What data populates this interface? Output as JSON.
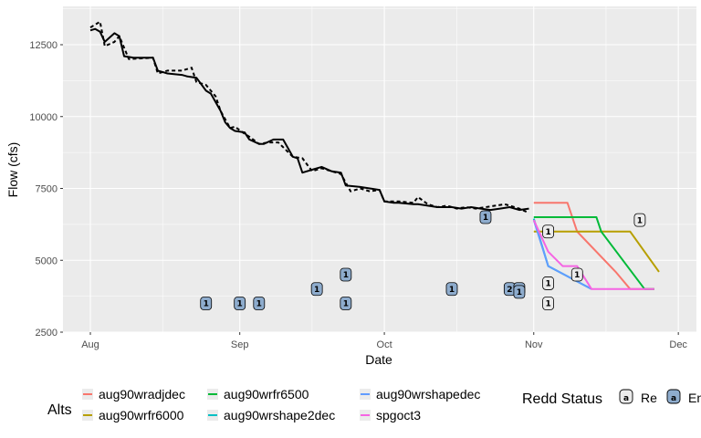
{
  "chart_data": {
    "type": "line",
    "xlabel": "Date",
    "ylabel": "Flow (cfs)",
    "x_ticks": [
      "Aug",
      "Sep",
      "Oct",
      "Nov",
      "Dec"
    ],
    "y_ticks": [
      "2500",
      "5000",
      "7500",
      "10000",
      "12500"
    ],
    "ylim": [
      2500,
      13700
    ],
    "grid": true,
    "observed_flow_solid": {
      "x": [
        "Aug 1",
        "Aug 2",
        "Aug 3",
        "Aug 4",
        "Aug 5",
        "Aug 6",
        "Aug 7",
        "Aug 8",
        "Aug 10",
        "Aug 14",
        "Aug 15",
        "Aug 17",
        "Aug 20",
        "Aug 21",
        "Aug 23",
        "Aug 25",
        "Aug 26",
        "Aug 28",
        "Aug 29",
        "Aug 30",
        "Aug 31",
        "Sep 2",
        "Sep 3",
        "Sep 5",
        "Sep 6",
        "Sep 8",
        "Sep 10",
        "Sep 12",
        "Sep 13",
        "Sep 14",
        "Sep 16",
        "Sep 18",
        "Sep 20",
        "Sep 22",
        "Sep 23",
        "Sep 26",
        "Sep 28",
        "Sep 30",
        "Oct 1",
        "Oct 3",
        "Oct 4",
        "Oct 7",
        "Oct 8",
        "Oct 10",
        "Oct 12",
        "Oct 15",
        "Oct 17",
        "Oct 19",
        "Oct 21",
        "Oct 23",
        "Oct 25",
        "Oct 27",
        "Oct 29",
        "Oct 31"
      ],
      "y": [
        13000,
        13050,
        12950,
        12600,
        12750,
        12900,
        12800,
        12100,
        12050,
        12050,
        11600,
        11500,
        11450,
        11400,
        11350,
        10900,
        10800,
        10200,
        9800,
        9600,
        9500,
        9450,
        9200,
        9050,
        9050,
        9200,
        9200,
        8600,
        8550,
        8050,
        8150,
        8250,
        8100,
        8050,
        7600,
        7550,
        7500,
        7450,
        7050,
        7000,
        7000,
        6950,
        6950,
        6900,
        6850,
        6850,
        6800,
        6850,
        6800,
        6750,
        6800,
        6850,
        6750,
        6800
      ]
    },
    "observed_flow_dashed": {
      "x": [
        "Aug 1",
        "Aug 3",
        "Aug 4",
        "Aug 6",
        "Aug 7",
        "Aug 9",
        "Aug 14",
        "Aug 15",
        "Aug 17",
        "Aug 20",
        "Aug 22",
        "Aug 23",
        "Aug 25",
        "Aug 27",
        "Aug 28",
        "Aug 30",
        "Aug 31",
        "Sep 2",
        "Sep 3",
        "Sep 5",
        "Sep 7",
        "Sep 9",
        "Sep 12",
        "Sep 14",
        "Sep 16",
        "Sep 18",
        "Sep 20",
        "Sep 22",
        "Sep 24",
        "Sep 26",
        "Sep 28",
        "Sep 30",
        "Oct 1",
        "Oct 4",
        "Oct 7",
        "Oct 8",
        "Oct 10",
        "Oct 12",
        "Oct 14",
        "Oct 16",
        "Oct 18",
        "Oct 20",
        "Oct 22",
        "Oct 24",
        "Oct 26",
        "Oct 28",
        "Oct 29",
        "Oct 31"
      ],
      "y": [
        13100,
        13300,
        12450,
        12600,
        12800,
        12000,
        12050,
        11500,
        11600,
        11600,
        11700,
        11200,
        11100,
        10700,
        10200,
        9600,
        9650,
        9400,
        9300,
        9050,
        9100,
        9100,
        8600,
        8550,
        8100,
        8200,
        8100,
        8000,
        7400,
        7500,
        7400,
        7450,
        7050,
        7050,
        7000,
        7200,
        6950,
        6850,
        6900,
        6800,
        6850,
        6800,
        6850,
        6900,
        6950,
        6850,
        6800,
        6650
      ]
    },
    "series": [
      {
        "name": "aug90wradjdec",
        "color": "#F8766D",
        "x": [
          "Nov 1",
          "Nov 8",
          "Nov 10",
          "Nov 18",
          "Nov 21",
          "Nov 26"
        ],
        "y": [
          7000,
          7000,
          6000,
          4600,
          4000,
          4000
        ]
      },
      {
        "name": "aug90wrfr6000",
        "color": "#B79F00",
        "x": [
          "Nov 1",
          "Nov 21",
          "Nov 27"
        ],
        "y": [
          6000,
          6000,
          4600
        ]
      },
      {
        "name": "aug90wrfr6500",
        "color": "#00BA38",
        "x": [
          "Nov 1",
          "Nov 14",
          "Nov 15",
          "Nov 24",
          "Nov 26"
        ],
        "y": [
          6500,
          6500,
          6000,
          4000,
          4000
        ]
      },
      {
        "name": "aug90wrshape2dec",
        "color": "#00BFC4",
        "x": [
          "Nov 1",
          "Nov 4",
          "Nov 13"
        ],
        "y": [
          6450,
          4800,
          4000
        ]
      },
      {
        "name": "aug90wrshapedec",
        "color": "#619CFF",
        "x": [
          "Nov 1",
          "Nov 4",
          "Nov 13"
        ],
        "y": [
          6400,
          4800,
          4000
        ]
      },
      {
        "name": "spgoct3",
        "color": "#F564E3",
        "x": [
          "Nov 1",
          "Nov 4",
          "Nov 7",
          "Nov 8",
          "Nov 10",
          "Nov 13",
          "Nov 26"
        ],
        "y": [
          6400,
          5300,
          4800,
          4800,
          4800,
          4000,
          4000
        ]
      }
    ],
    "redds": [
      {
        "x": "Aug 25",
        "y": 3500,
        "count": "1",
        "status": "Emerged"
      },
      {
        "x": "Sep 1",
        "y": 3500,
        "count": "1",
        "status": "Emerged"
      },
      {
        "x": "Sep 5",
        "y": 3500,
        "count": "1",
        "status": "Emerged"
      },
      {
        "x": "Sep 17",
        "y": 4000,
        "count": "1",
        "status": "Emerged"
      },
      {
        "x": "Sep 23",
        "y": 3500,
        "count": "1",
        "status": "Emerged"
      },
      {
        "x": "Sep 23",
        "y": 4500,
        "count": "1",
        "status": "Emerged"
      },
      {
        "x": "Oct 15",
        "y": 4000,
        "count": "1",
        "status": "Emerged"
      },
      {
        "x": "Oct 22",
        "y": 6500,
        "count": "1",
        "status": "Emerged"
      },
      {
        "x": "Oct 27",
        "y": 4000,
        "count": "2",
        "status": "Emerged"
      },
      {
        "x": "Oct 29",
        "y": 4000,
        "count": "1",
        "status": "Emerged"
      },
      {
        "x": "Oct 29",
        "y": 3900,
        "count": "1",
        "status": "Emerged"
      },
      {
        "x": "Nov 4",
        "y": 6000,
        "count": "1",
        "status": "Remaining"
      },
      {
        "x": "Nov 4",
        "y": 4200,
        "count": "1",
        "status": "Remaining"
      },
      {
        "x": "Nov 4",
        "y": 3500,
        "count": "1",
        "status": "Remaining"
      },
      {
        "x": "Nov 10",
        "y": 4500,
        "count": "1",
        "status": "Remaining"
      },
      {
        "x": "Nov 23",
        "y": 6400,
        "count": "1",
        "status": "Remaining"
      }
    ]
  },
  "legend": {
    "alts_title": "Alts",
    "alts_items": [
      "aug90wradjdec",
      "aug90wrfr6000",
      "aug90wrfr6500",
      "aug90wrshape2dec",
      "aug90wrshapedec",
      "spgoct3"
    ],
    "redd_title": "Redd Status",
    "redd_items": [
      {
        "glyph": "a",
        "label": "Re",
        "fill": "#ebebeb"
      },
      {
        "glyph": "a",
        "label": "En",
        "fill": "#8eaccd"
      }
    ]
  },
  "colors": {
    "panel": "#ebebeb",
    "grid": "#ffffff",
    "emerged_fill": "#8eaccd",
    "remaining_fill": "#ebebeb",
    "observed_line": "#000000"
  }
}
